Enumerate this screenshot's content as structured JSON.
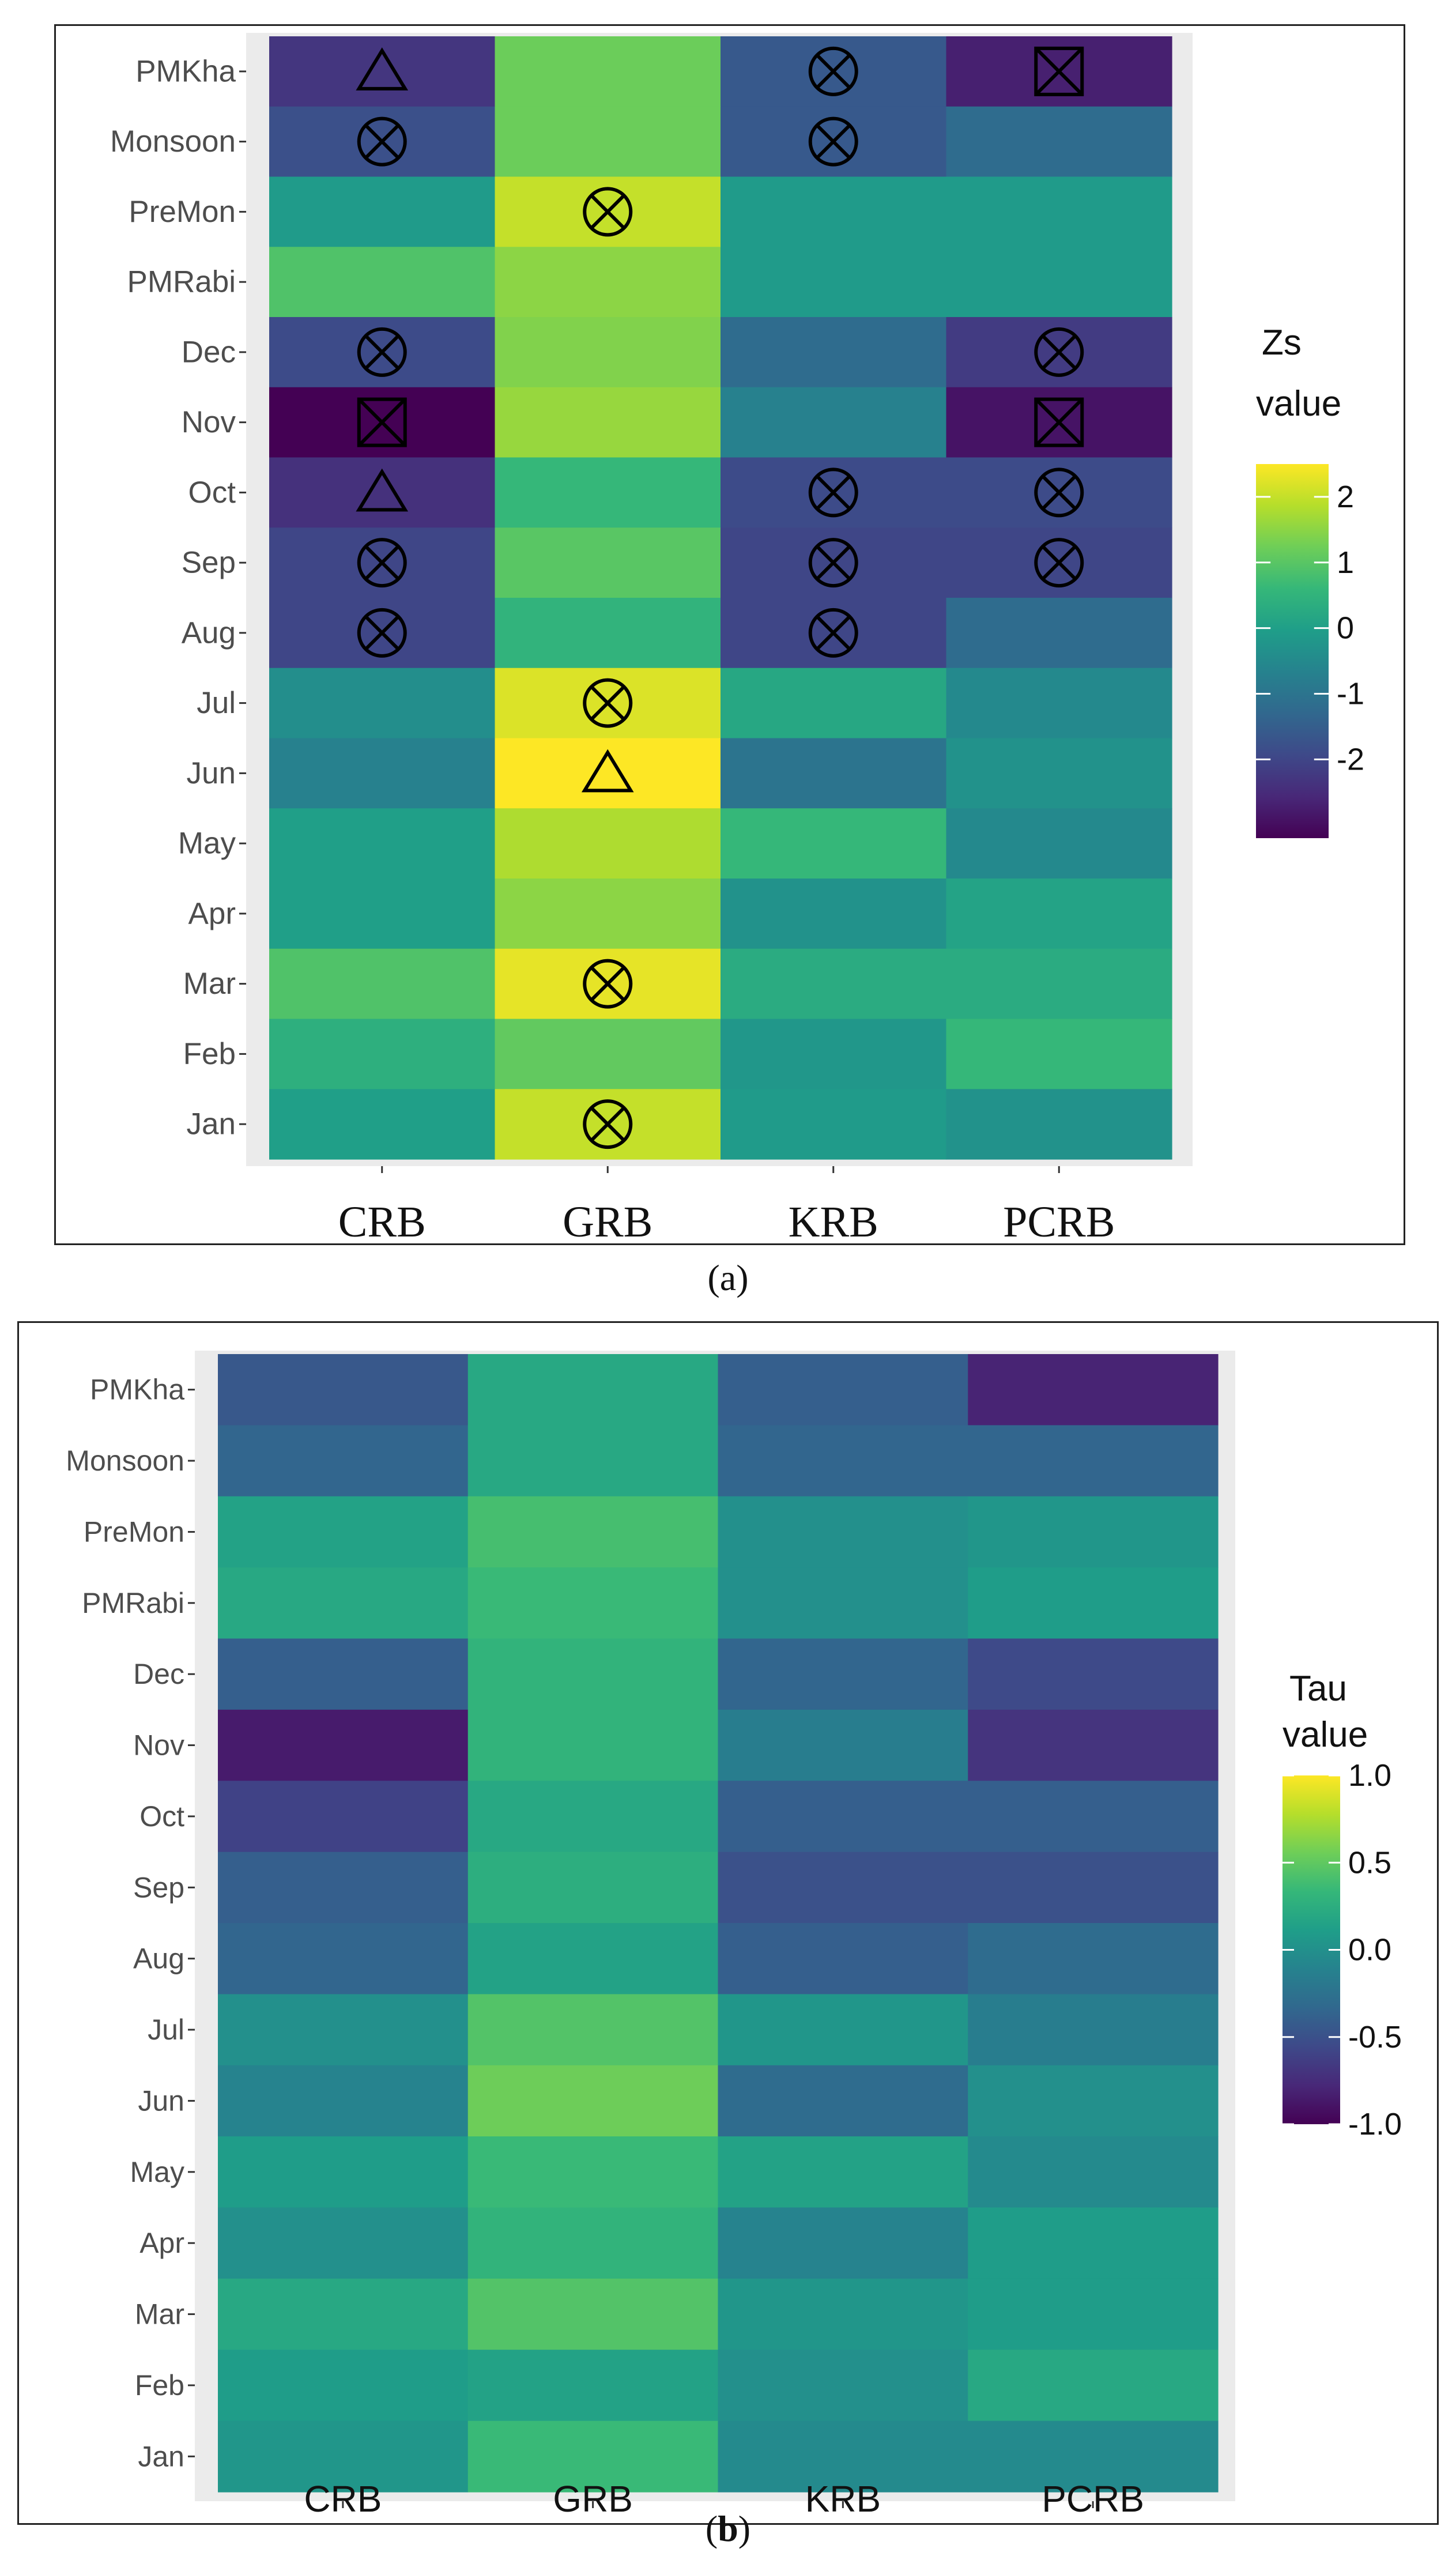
{
  "chart_data": [
    {
      "panel": "a",
      "caption": "(a)",
      "type": "heatmap",
      "x_categories": [
        "CRB",
        "GRB",
        "KRB",
        "PCRB"
      ],
      "y_categories": [
        "PMKha",
        "Monsoon",
        "PreMon",
        "PMRabi",
        "Dec",
        "Nov",
        "Oct",
        "Sep",
        "Aug",
        "Jul",
        "Jun",
        "May",
        "Apr",
        "Mar",
        "Feb",
        "Jan"
      ],
      "values": [
        [
          -2.3,
          1.2,
          -1.6,
          -2.7
        ],
        [
          -1.8,
          1.2,
          -1.6,
          -1.2
        ],
        [
          -0.1,
          2.0,
          -0.1,
          -0.1
        ],
        [
          0.9,
          1.5,
          -0.1,
          -0.1
        ],
        [
          -1.9,
          1.4,
          -1.2,
          -2.2
        ],
        [
          -3.2,
          1.6,
          -0.7,
          -2.9
        ],
        [
          -2.4,
          0.6,
          -1.9,
          -1.9
        ],
        [
          -2.0,
          1.0,
          -2.0,
          -2.0
        ],
        [
          -2.0,
          0.5,
          -2.0,
          -1.2
        ],
        [
          -0.4,
          2.2,
          0.2,
          -0.5
        ],
        [
          -0.7,
          2.5,
          -1.0,
          -0.3
        ],
        [
          0.0,
          1.8,
          0.6,
          -0.5
        ],
        [
          0.0,
          1.5,
          -0.3,
          0.1
        ],
        [
          0.9,
          2.3,
          0.3,
          0.3
        ],
        [
          0.4,
          1.1,
          -0.2,
          0.6
        ],
        [
          0.0,
          2.0,
          -0.1,
          -0.3
        ]
      ],
      "markers": [
        {
          "row": "PMKha",
          "col": "CRB",
          "symbol": "triangle"
        },
        {
          "row": "PMKha",
          "col": "KRB",
          "symbol": "circle-x"
        },
        {
          "row": "PMKha",
          "col": "PCRB",
          "symbol": "square-x"
        },
        {
          "row": "Monsoon",
          "col": "CRB",
          "symbol": "circle-x"
        },
        {
          "row": "Monsoon",
          "col": "KRB",
          "symbol": "circle-x"
        },
        {
          "row": "PreMon",
          "col": "GRB",
          "symbol": "circle-x"
        },
        {
          "row": "Dec",
          "col": "CRB",
          "symbol": "circle-x"
        },
        {
          "row": "Dec",
          "col": "PCRB",
          "symbol": "circle-x"
        },
        {
          "row": "Nov",
          "col": "CRB",
          "symbol": "square-x"
        },
        {
          "row": "Nov",
          "col": "PCRB",
          "symbol": "square-x"
        },
        {
          "row": "Oct",
          "col": "CRB",
          "symbol": "triangle"
        },
        {
          "row": "Oct",
          "col": "KRB",
          "symbol": "circle-x"
        },
        {
          "row": "Oct",
          "col": "PCRB",
          "symbol": "circle-x"
        },
        {
          "row": "Sep",
          "col": "CRB",
          "symbol": "circle-x"
        },
        {
          "row": "Sep",
          "col": "KRB",
          "symbol": "circle-x"
        },
        {
          "row": "Sep",
          "col": "PCRB",
          "symbol": "circle-x"
        },
        {
          "row": "Aug",
          "col": "CRB",
          "symbol": "circle-x"
        },
        {
          "row": "Aug",
          "col": "KRB",
          "symbol": "circle-x"
        },
        {
          "row": "Jul",
          "col": "GRB",
          "symbol": "circle-x"
        },
        {
          "row": "Jun",
          "col": "GRB",
          "symbol": "triangle"
        },
        {
          "row": "Mar",
          "col": "GRB",
          "symbol": "circle-x"
        },
        {
          "row": "Jan",
          "col": "GRB",
          "symbol": "circle-x"
        }
      ],
      "legend": {
        "title_line1": "Zs",
        "title_line2": "value",
        "ticks": [
          2,
          1,
          0,
          -1,
          -2
        ],
        "tick_labels": [
          "2",
          "1",
          "0",
          "-1",
          "-2"
        ],
        "range": [
          -3.2,
          2.5
        ],
        "placement": "right"
      }
    },
    {
      "panel": "b",
      "caption": "(b)",
      "type": "heatmap",
      "x_categories": [
        "CRB",
        "GRB",
        "KRB",
        "PCRB"
      ],
      "y_categories": [
        "PMKha",
        "Monsoon",
        "PreMon",
        "PMRabi",
        "Dec",
        "Nov",
        "Oct",
        "Sep",
        "Aug",
        "Jul",
        "Jun",
        "May",
        "Apr",
        "Mar",
        "Feb",
        "Jan"
      ],
      "values": [
        [
          -0.45,
          0.2,
          -0.4,
          -0.8
        ],
        [
          -0.35,
          0.2,
          -0.35,
          -0.35
        ],
        [
          0.15,
          0.4,
          0.0,
          0.05
        ],
        [
          0.2,
          0.35,
          0.0,
          0.1
        ],
        [
          -0.4,
          0.3,
          -0.35,
          -0.55
        ],
        [
          -0.85,
          0.3,
          -0.15,
          -0.7
        ],
        [
          -0.6,
          0.2,
          -0.4,
          -0.4
        ],
        [
          -0.4,
          0.25,
          -0.5,
          -0.5
        ],
        [
          -0.35,
          0.15,
          -0.4,
          -0.3
        ],
        [
          0.0,
          0.45,
          0.05,
          -0.15
        ],
        [
          -0.1,
          0.55,
          -0.3,
          0.0
        ],
        [
          0.1,
          0.35,
          0.15,
          -0.05
        ],
        [
          0.0,
          0.3,
          -0.1,
          0.1
        ],
        [
          0.2,
          0.45,
          0.05,
          0.1
        ],
        [
          0.1,
          0.15,
          0.0,
          0.2
        ],
        [
          0.05,
          0.35,
          -0.05,
          -0.05
        ]
      ],
      "legend": {
        "title_line1": "Tau",
        "title_line2": "value",
        "ticks": [
          1.0,
          0.5,
          0.0,
          -0.5,
          -1.0
        ],
        "tick_labels": [
          "1.0",
          "0.5",
          "0.0",
          "-0.5",
          "-1.0"
        ],
        "range": [
          -1.0,
          1.0
        ],
        "placement": "right"
      }
    }
  ]
}
